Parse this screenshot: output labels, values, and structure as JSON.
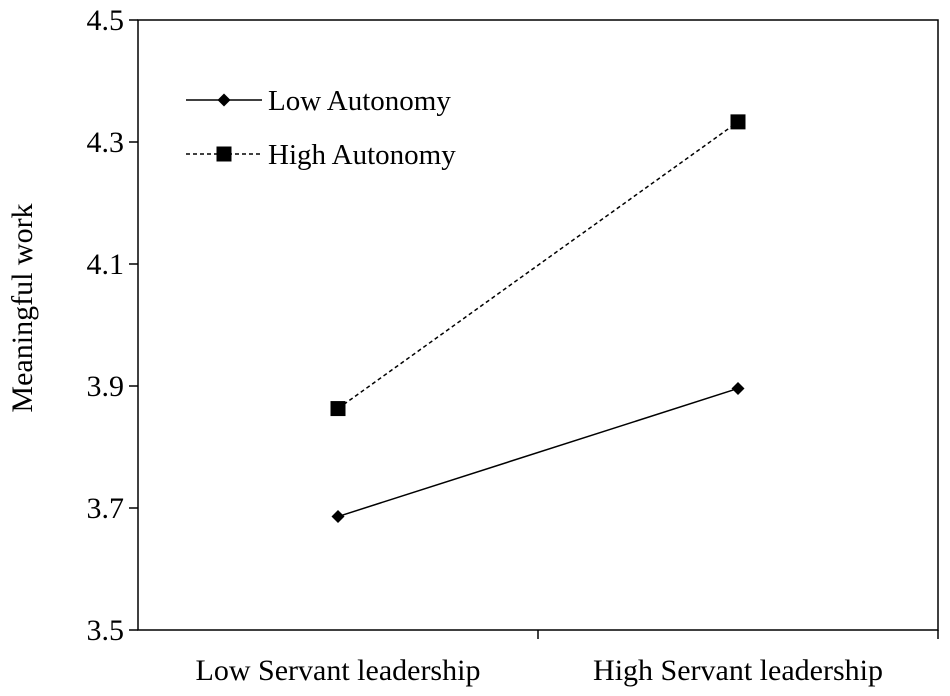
{
  "chart_data": {
    "type": "line",
    "title": "",
    "xlabel": "",
    "ylabel": "Meaningful  work",
    "categories": [
      "Low Servant leadership",
      "High Servant leadership"
    ],
    "ylim": [
      3.5,
      4.5
    ],
    "yticks": [
      "3.5",
      "3.7",
      "3.9",
      "4.1",
      "4.3",
      "4.5"
    ],
    "grid": false,
    "legend_position": "top-left",
    "series": [
      {
        "name": "Low Autonomy",
        "values": [
          3.686,
          3.896
        ],
        "marker": "diamond",
        "line_style": "solid",
        "color": "#000000"
      },
      {
        "name": "High Autonomy",
        "values": [
          3.863,
          4.333
        ],
        "marker": "square",
        "line_style": "dashed",
        "color": "#000000"
      }
    ]
  }
}
